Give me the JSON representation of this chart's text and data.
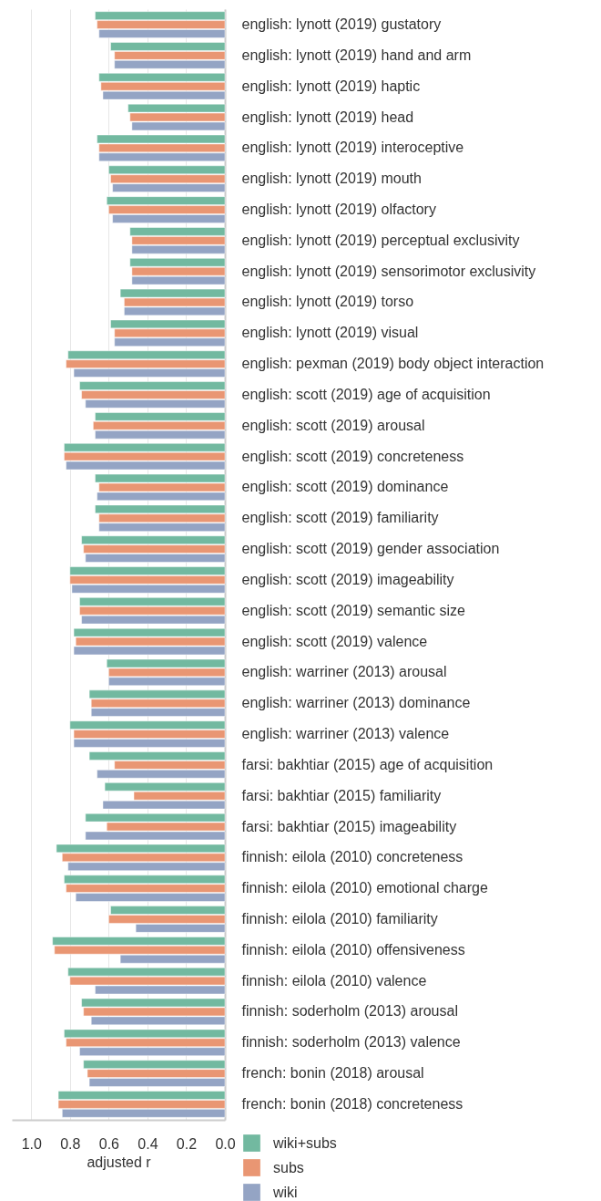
{
  "chart_data": {
    "type": "bar",
    "orientation": "horizontal",
    "xlabel": "adjusted r",
    "categories": [
      "english: lynott (2019) gustatory",
      "english: lynott (2019) hand and arm",
      "english: lynott (2019) haptic",
      "english: lynott (2019) head",
      "english: lynott (2019) interoceptive",
      "english: lynott (2019) mouth",
      "english: lynott (2019) olfactory",
      "english: lynott (2019) perceptual exclusivity",
      "english: lynott (2019) sensorimotor exclusivity",
      "english: lynott (2019) torso",
      "english: lynott (2019) visual",
      "english: pexman (2019) body object interaction",
      "english: scott (2019) age of acquisition",
      "english: scott (2019) arousal",
      "english: scott (2019) concreteness",
      "english: scott (2019) dominance",
      "english: scott (2019) familiarity",
      "english: scott (2019) gender association",
      "english: scott (2019) imageability",
      "english: scott (2019) semantic size",
      "english: scott (2019) valence",
      "english: warriner (2013) arousal",
      "english: warriner (2013) dominance",
      "english: warriner (2013) valence",
      "farsi: bakhtiar (2015) age of acquisition",
      "farsi: bakhtiar (2015) familiarity",
      "farsi: bakhtiar (2015) imageability",
      "finnish: eilola (2010) concreteness",
      "finnish: eilola (2010) emotional charge",
      "finnish: eilola (2010) familiarity",
      "finnish: eilola (2010) offensiveness",
      "finnish: eilola (2010) valence",
      "finnish: soderholm (2013) arousal",
      "finnish: soderholm (2013) valence",
      "french: bonin (2018) arousal",
      "french: bonin (2018) concreteness"
    ],
    "series": [
      {
        "name": "wiki+subs",
        "color": "#72b9a0",
        "values": [
          0.67,
          0.59,
          0.65,
          0.5,
          0.66,
          0.6,
          0.61,
          0.49,
          0.49,
          0.54,
          0.59,
          0.81,
          0.75,
          0.67,
          0.83,
          0.67,
          0.67,
          0.74,
          0.8,
          0.75,
          0.78,
          0.61,
          0.7,
          0.8,
          0.7,
          0.62,
          0.72,
          0.87,
          0.83,
          0.59,
          0.89,
          0.81,
          0.74,
          0.83,
          0.73,
          0.86
        ]
      },
      {
        "name": "subs",
        "color": "#e99673",
        "values": [
          0.66,
          0.57,
          0.64,
          0.49,
          0.65,
          0.59,
          0.6,
          0.48,
          0.48,
          0.52,
          0.57,
          0.82,
          0.74,
          0.68,
          0.83,
          0.65,
          0.65,
          0.73,
          0.8,
          0.75,
          0.77,
          0.6,
          0.69,
          0.78,
          0.57,
          0.47,
          0.61,
          0.84,
          0.82,
          0.6,
          0.88,
          0.8,
          0.73,
          0.82,
          0.71,
          0.86
        ]
      },
      {
        "name": "wiki",
        "color": "#94a4c4",
        "values": [
          0.65,
          0.57,
          0.63,
          0.48,
          0.65,
          0.58,
          0.58,
          0.48,
          0.48,
          0.52,
          0.57,
          0.78,
          0.72,
          0.67,
          0.82,
          0.66,
          0.65,
          0.72,
          0.79,
          0.74,
          0.78,
          0.6,
          0.69,
          0.78,
          0.66,
          0.63,
          0.72,
          0.81,
          0.77,
          0.46,
          0.54,
          0.67,
          0.69,
          0.75,
          0.7,
          0.84
        ]
      }
    ],
    "xlim": [
      1.1,
      0
    ],
    "xticks": [
      {
        "value": 1.0,
        "label": "1.0"
      },
      {
        "value": 0.8,
        "label": "0.8"
      },
      {
        "value": 0.6,
        "label": "0.6"
      },
      {
        "value": 0.4,
        "label": "0.4"
      },
      {
        "value": 0.2,
        "label": "0.2"
      },
      {
        "value": 0,
        "label": "0.0"
      }
    ],
    "grid": "x",
    "legend": "bottom right"
  }
}
